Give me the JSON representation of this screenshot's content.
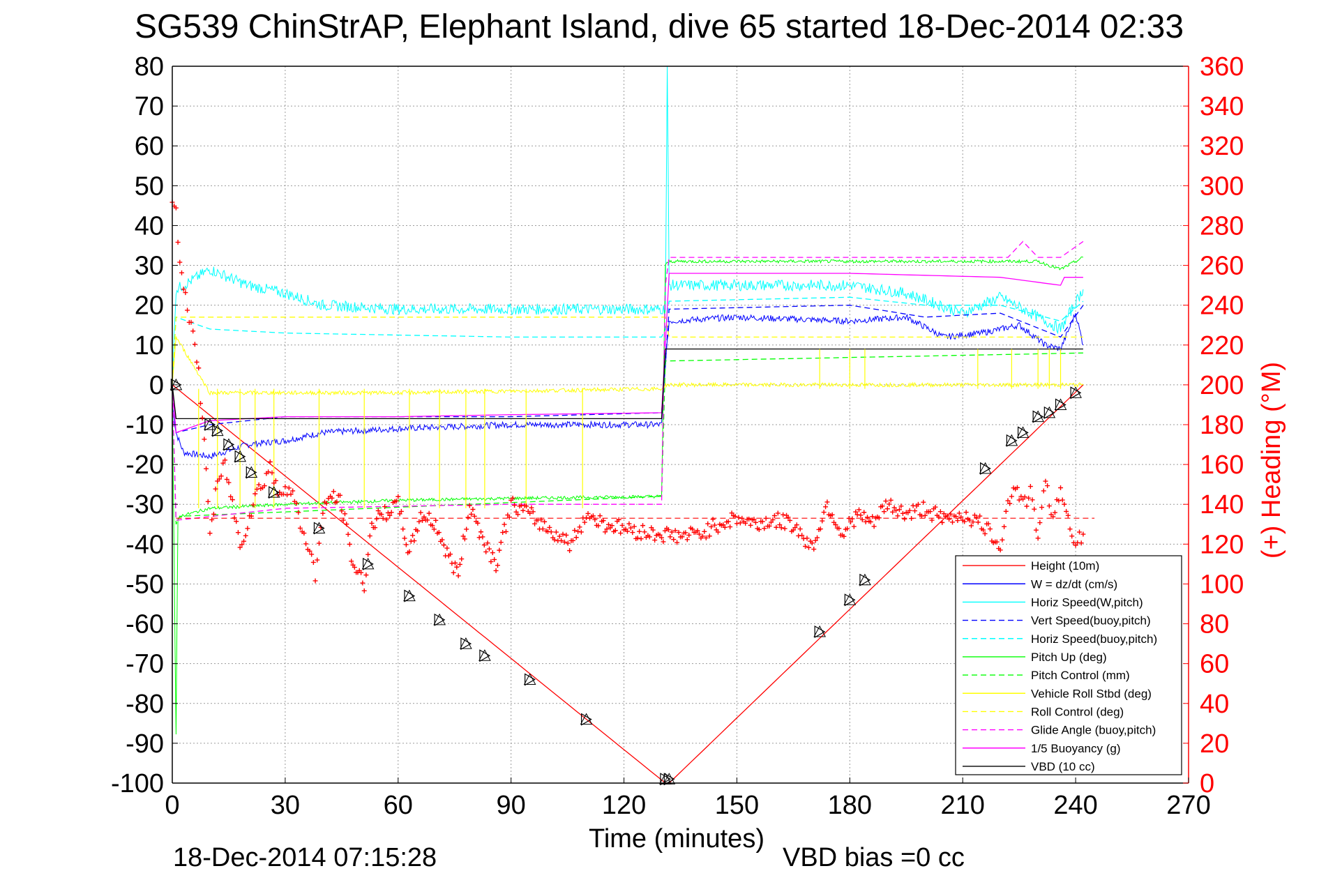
{
  "chart_data": {
    "type": "line",
    "title": "SG539 ChinStrAP, Elephant Island, dive 65 started 18-Dec-2014 02:33",
    "xlabel": "Time (minutes)",
    "ylabel": "",
    "ylabel_right": "(+) Heading (°M)",
    "xlim": [
      0,
      270
    ],
    "ylim": [
      -100,
      80
    ],
    "ylim_right": [
      0,
      360
    ],
    "x_ticks": [
      "0",
      "30",
      "60",
      "90",
      "120",
      "150",
      "180",
      "210",
      "240",
      "270"
    ],
    "y_ticks": [
      "80",
      "70",
      "60",
      "50",
      "40",
      "30",
      "20",
      "10",
      "0",
      "-10",
      "-20",
      "-30",
      "-40",
      "-50",
      "-60",
      "-70",
      "-80",
      "-90",
      "-100"
    ],
    "y_ticks_right": [
      "360",
      "340",
      "320",
      "300",
      "280",
      "260",
      "240",
      "220",
      "200",
      "180",
      "160",
      "140",
      "120",
      "100",
      "80",
      "60",
      "40",
      "20",
      "0"
    ],
    "grid": true,
    "legend_position": "bottom-right",
    "footer_left": "18-Dec-2014 07:15:28",
    "footer_right": "VBD bias =0 cc",
    "colors": {
      "red": "#ff0000",
      "blue": "#0000ff",
      "cyan": "#00ffff",
      "green": "#00ff00",
      "yellow": "#ffff00",
      "magenta": "#ff00ff",
      "black": "#000000"
    },
    "series": [
      {
        "name": "Height (10m)",
        "color": "#ff0000",
        "style": "solid",
        "x": [
          0,
          131,
          132,
          242
        ],
        "y": [
          0,
          -100,
          -100,
          0
        ]
      },
      {
        "name": "W = dz/dt (cm/s)",
        "color": "#0000ff",
        "style": "solid",
        "noise": 0.8,
        "x": [
          0,
          1,
          3,
          10,
          20,
          30,
          40,
          60,
          90,
          120,
          130,
          131,
          132,
          150,
          180,
          195,
          205,
          215,
          225,
          232,
          236,
          240,
          242
        ],
        "y": [
          -5,
          -12,
          -17,
          -18,
          -15,
          -14,
          -12,
          -11,
          -10,
          -10,
          -10,
          5,
          16,
          17,
          16,
          17,
          12,
          13,
          15,
          10,
          9,
          18,
          10
        ]
      },
      {
        "name": "Horiz Speed(W,pitch)",
        "color": "#00ffff",
        "style": "solid",
        "noise": 1.4,
        "x": [
          0,
          1,
          3,
          10,
          20,
          30,
          40,
          60,
          90,
          120,
          130,
          131,
          131.5,
          132,
          150,
          180,
          195,
          210,
          220,
          228,
          236,
          242
        ],
        "y": [
          0,
          24,
          25,
          29,
          25,
          23,
          20,
          19,
          19,
          19,
          19,
          19,
          80,
          25,
          25,
          25,
          23,
          18,
          22,
          18,
          14,
          24
        ]
      },
      {
        "name": "Vert Speed(buoy,pitch)",
        "color": "#0000ff",
        "style": "dashed",
        "x": [
          0,
          1,
          10,
          30,
          60,
          90,
          130,
          131,
          132,
          180,
          200,
          220,
          236,
          242
        ],
        "y": [
          0,
          -12,
          -10,
          -8,
          -8,
          -8,
          -7,
          5,
          19,
          20,
          17,
          18,
          12,
          20
        ]
      },
      {
        "name": "Horiz Speed(buoy,pitch)",
        "color": "#00ffff",
        "style": "dashed",
        "x": [
          0,
          1,
          10,
          30,
          60,
          90,
          130,
          131,
          132,
          180,
          200,
          220,
          236,
          242
        ],
        "y": [
          0,
          17,
          14,
          13,
          12.5,
          12,
          12,
          14,
          21,
          22,
          20,
          20,
          16,
          21
        ]
      },
      {
        "name": "Pitch Up (deg)",
        "color": "#00ff00",
        "style": "solid",
        "noise": 0.4,
        "x": [
          0,
          1,
          1.5,
          2,
          10,
          30,
          60,
          90,
          130,
          131,
          132,
          180,
          230,
          236,
          242
        ],
        "y": [
          0,
          -88,
          -34,
          -33,
          -31,
          -30,
          -29,
          -28.5,
          -28,
          30,
          31,
          31,
          31,
          29,
          32
        ]
      },
      {
        "name": "Pitch Control (mm)",
        "color": "#00ff00",
        "style": "dashed",
        "x": [
          0,
          1,
          2,
          130,
          131,
          132,
          242
        ],
        "y": [
          0,
          -35,
          -33,
          -28,
          6,
          6,
          8
        ]
      },
      {
        "name": "Vehicle Roll Stbd (deg)",
        "color": "#ffff00",
        "style": "solid",
        "noise": 0.5,
        "x": [
          0,
          1,
          10,
          60,
          130,
          131,
          132,
          242
        ],
        "y": [
          0,
          12,
          -2,
          -2,
          -1,
          0,
          0,
          0
        ]
      },
      {
        "name": "Roll Control (deg)",
        "color": "#ffff00",
        "style": "dashed",
        "x": [
          0,
          1,
          131,
          132,
          242
        ],
        "y": [
          0,
          17,
          17,
          12,
          12
        ]
      },
      {
        "name": "Glide Angle (buoy,pitch)",
        "color": "#ff00ff",
        "style": "dashed",
        "x": [
          0,
          1,
          30,
          60,
          90,
          130,
          131,
          132,
          180,
          222,
          226,
          230,
          236,
          242
        ],
        "y": [
          0,
          -34,
          -31,
          -30.5,
          -30,
          -30,
          25,
          32,
          32,
          32,
          36,
          32,
          32,
          36
        ]
      },
      {
        "name": "1/5 Buoyancy (g)",
        "color": "#ff00ff",
        "style": "solid",
        "x": [
          0,
          1,
          10,
          30,
          60,
          90,
          130,
          131,
          132,
          180,
          220,
          236,
          237,
          242
        ],
        "y": [
          0,
          -12,
          -9,
          -8,
          -8,
          -7.5,
          -7,
          10,
          28,
          28,
          27,
          25,
          27,
          27
        ]
      },
      {
        "name": "VBD (10 cc)",
        "color": "#000000",
        "style": "solid",
        "x": [
          0,
          1,
          130,
          131,
          132,
          242
        ],
        "y": [
          0,
          -8.5,
          -8.5,
          9,
          9,
          9
        ]
      }
    ],
    "heading_series": {
      "name": "Heading (+)",
      "color": "#ff0000",
      "axis": "right",
      "x": [
        0,
        1,
        2,
        3,
        5,
        7,
        9,
        10,
        12,
        14,
        16,
        18,
        20,
        22,
        24,
        26,
        28,
        30,
        32,
        34,
        36,
        38,
        40,
        42,
        45,
        48,
        51,
        53,
        56,
        60,
        63,
        66,
        70,
        73,
        76,
        79,
        82,
        86,
        90,
        95,
        98,
        102,
        106,
        110,
        115,
        120,
        125,
        130,
        135,
        140,
        145,
        150,
        155,
        160,
        165,
        170,
        174,
        178,
        182,
        186,
        190,
        195,
        200,
        205,
        210,
        215,
        220,
        222,
        224,
        226,
        228,
        230,
        232,
        234,
        236,
        238,
        240,
        242
      ],
      "y": [
        295,
        285,
        265,
        250,
        230,
        205,
        160,
        125,
        150,
        160,
        140,
        120,
        130,
        145,
        150,
        160,
        145,
        150,
        145,
        130,
        120,
        105,
        135,
        145,
        140,
        110,
        100,
        130,
        135,
        140,
        115,
        135,
        130,
        115,
        105,
        140,
        125,
        110,
        140,
        135,
        130,
        125,
        120,
        135,
        130,
        128,
        126,
        125,
        124,
        125,
        130,
        133,
        130,
        132,
        130,
        118,
        140,
        125,
        135,
        130,
        140,
        135,
        138,
        132,
        135,
        130,
        120,
        140,
        150,
        140,
        145,
        125,
        150,
        135,
        145,
        135,
        120,
        125
      ]
    },
    "heading_dashed": {
      "color": "#ff0000",
      "value": 133
    },
    "markers": {
      "color": "#000000",
      "x": [
        1,
        10,
        12,
        15,
        18,
        21,
        27,
        39,
        52,
        63,
        71,
        78,
        83,
        95,
        110,
        131,
        132,
        172,
        180,
        184,
        216,
        223,
        226,
        230,
        233,
        236,
        240
      ],
      "y": [
        0,
        -10,
        -11.5,
        -15,
        -18,
        -22,
        -27,
        -36,
        -45,
        -53,
        -59,
        -65,
        -68,
        -74,
        -84,
        -99,
        -99,
        -62,
        -54,
        -49,
        -21,
        -14,
        -12,
        -8,
        -7,
        -5,
        -2
      ]
    }
  }
}
